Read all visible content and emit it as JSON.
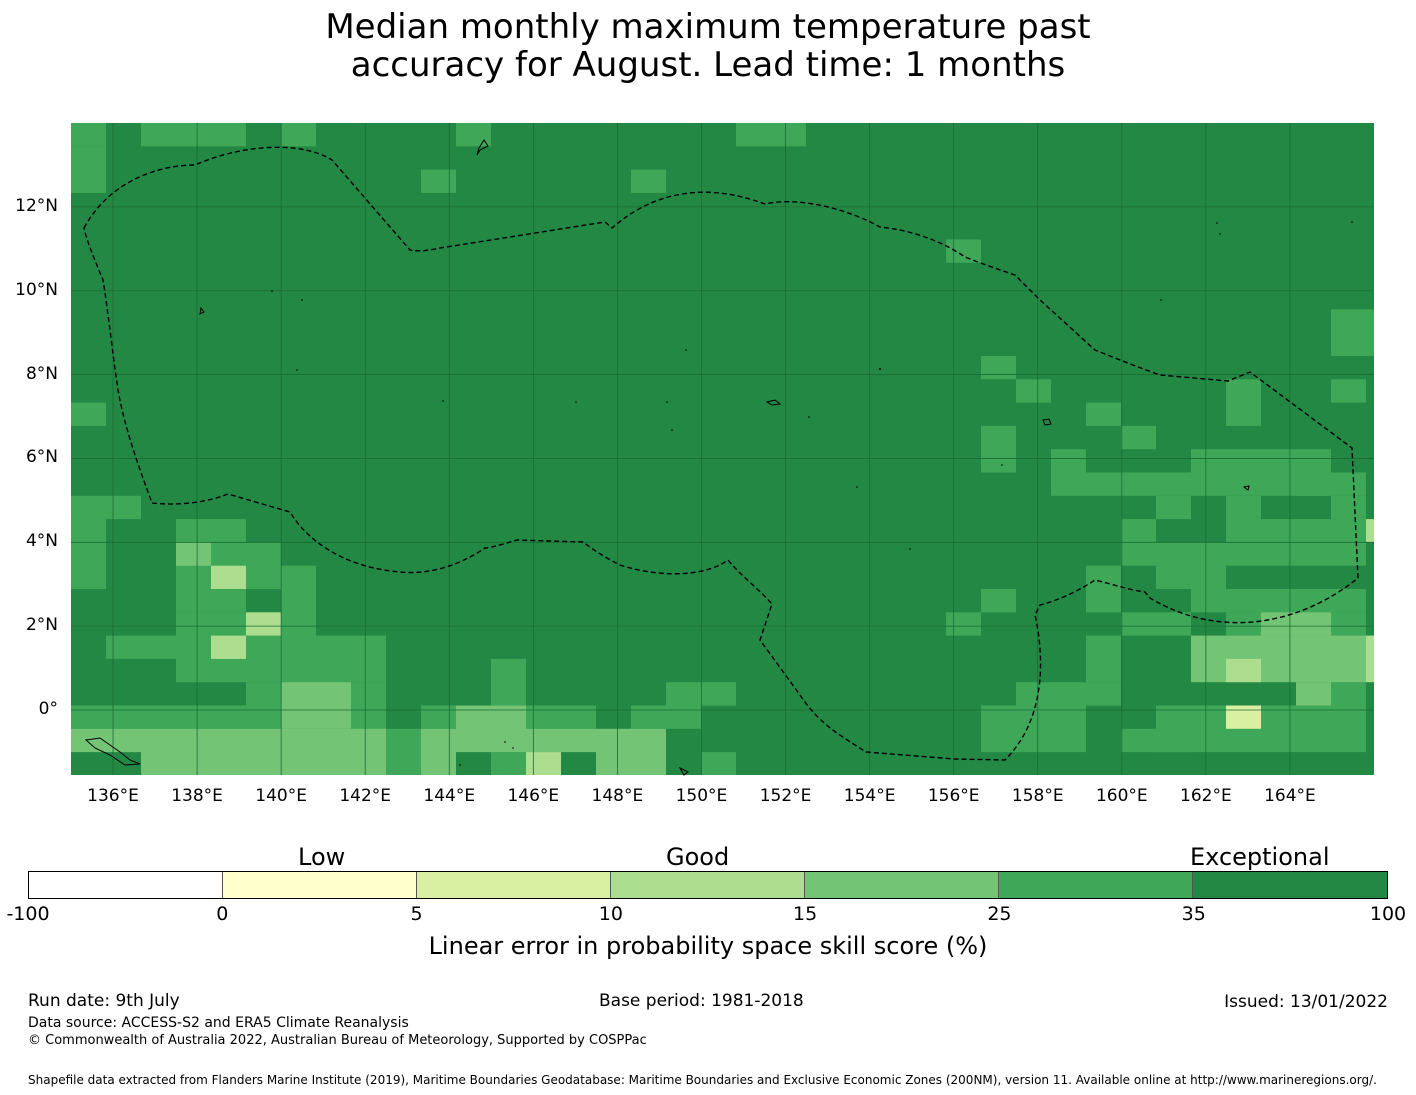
{
  "title_line1": "Median monthly maximum temperature past",
  "title_line2": "accuracy for August. Lead time: 1 months",
  "map": {
    "lon_ticks": [
      "136°E",
      "138°E",
      "140°E",
      "142°E",
      "144°E",
      "146°E",
      "148°E",
      "150°E",
      "152°E",
      "154°E",
      "156°E",
      "158°E",
      "160°E",
      "162°E",
      "164°E"
    ],
    "lon_values": [
      136,
      138,
      140,
      142,
      144,
      146,
      148,
      150,
      152,
      154,
      156,
      158,
      160,
      162,
      164
    ],
    "lat_ticks": [
      "12°N",
      "10°N",
      "8°N",
      "6°N",
      "4°N",
      "2°N",
      "0°"
    ],
    "lat_values": [
      12,
      10,
      8,
      6,
      4,
      2,
      0
    ],
    "lon_range": [
      135,
      166
    ],
    "lat_range": [
      -1.55,
      14
    ],
    "background_color": "#248845",
    "cell_colors": {
      "b25": "#3ea858",
      "b15": "#74c476",
      "b10": "#addd8e",
      "b5": "#d9f0a3"
    }
  },
  "colorbar": {
    "categories": [
      "Low",
      "Good",
      "Exceptional"
    ],
    "ticks": [
      "-100",
      "0",
      "5",
      "10",
      "15",
      "25",
      "35",
      "100"
    ],
    "colors": [
      "#ffffff",
      "#ffffcc",
      "#d9f0a3",
      "#addd8e",
      "#74c476",
      "#3ea858",
      "#248845"
    ],
    "label": "Linear error in probability space skill score (%)"
  },
  "footer": {
    "run_date": "Run date: 9th July",
    "base_period": "Base period: 1981-2018",
    "issued": "Issued: 13/01/2022",
    "data_source": "Data source: ACCESS-S2 and ERA5 Climate Reanalysis",
    "copyright": "© Commonwealth of Australia 2022, Australian Bureau of Meteorology, Supported by COSPPac",
    "shapefile": "Shapefile data extracted from Flanders Marine Institute (2019), Maritime Boundaries Geodatabase: Maritime Boundaries and Exclusive Economic Zones (200NM), version 11. Available online at http://www.marineregions.org/."
  }
}
